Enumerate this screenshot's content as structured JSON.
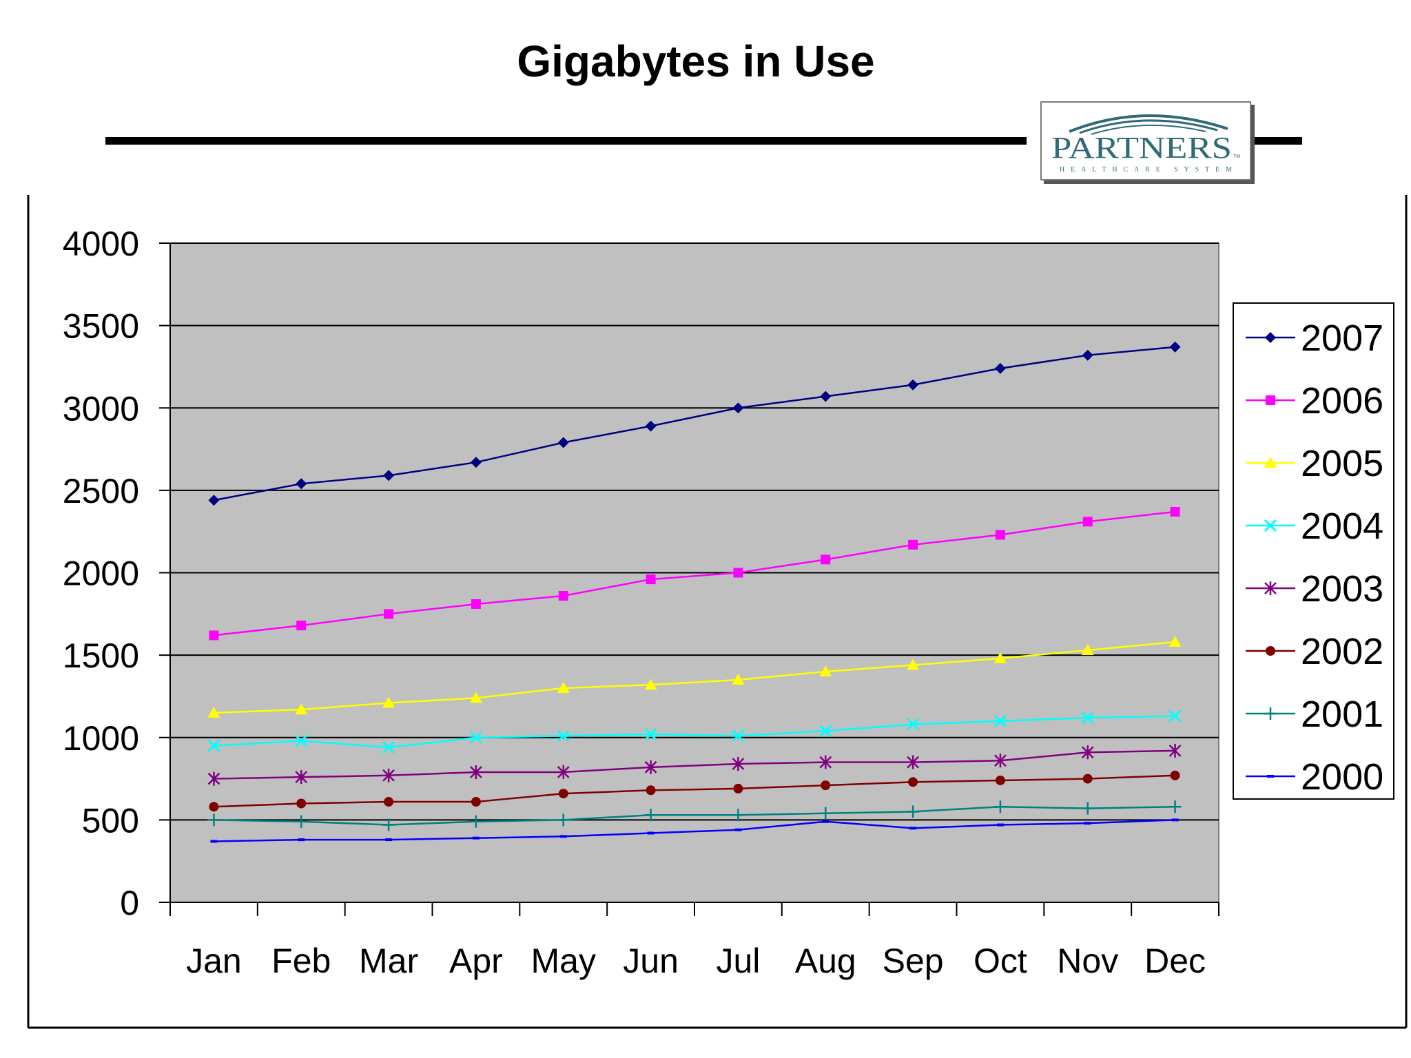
{
  "title": "Gigabytes in Use",
  "logo": {
    "name": "PARTNERS",
    "trademark": "TM",
    "tagline": "HEALTHCARE SYSTEM"
  },
  "chart_data": {
    "type": "line",
    "title": "",
    "xlabel": "",
    "ylabel": "",
    "categories": [
      "Jan",
      "Feb",
      "Mar",
      "Apr",
      "May",
      "Jun",
      "Jul",
      "Aug",
      "Sep",
      "Oct",
      "Nov",
      "Dec"
    ],
    "ylim": [
      0,
      4000
    ],
    "yticks": [
      "4000",
      "3500",
      "3000",
      "2500",
      "2000",
      "1500",
      "1000",
      "500",
      "0"
    ],
    "grid": true,
    "legend_position": "right",
    "series": [
      {
        "name": "2007",
        "color": "#000080",
        "marker": "diamond",
        "values": [
          2440,
          2540,
          2590,
          2670,
          2790,
          2890,
          3000,
          3070,
          3140,
          3240,
          3320,
          3370
        ]
      },
      {
        "name": "2006",
        "color": "#ff00ff",
        "marker": "square",
        "values": [
          1620,
          1680,
          1750,
          1810,
          1860,
          1960,
          2000,
          2080,
          2170,
          2230,
          2310,
          2370
        ]
      },
      {
        "name": "2005",
        "color": "#ffff00",
        "marker": "triangle",
        "values": [
          1150,
          1170,
          1210,
          1240,
          1300,
          1320,
          1350,
          1400,
          1440,
          1480,
          1530,
          1580
        ]
      },
      {
        "name": "2004",
        "color": "#00ffff",
        "marker": "x",
        "values": [
          950,
          980,
          940,
          1000,
          1010,
          1020,
          1010,
          1040,
          1080,
          1100,
          1120,
          1130
        ]
      },
      {
        "name": "2003",
        "color": "#800080",
        "marker": "star",
        "values": [
          750,
          760,
          770,
          790,
          790,
          820,
          840,
          850,
          850,
          860,
          910,
          920
        ]
      },
      {
        "name": "2002",
        "color": "#800000",
        "marker": "circle",
        "values": [
          580,
          600,
          610,
          610,
          660,
          680,
          690,
          710,
          730,
          740,
          750,
          770
        ]
      },
      {
        "name": "2001",
        "color": "#008080",
        "marker": "plus",
        "values": [
          500,
          490,
          470,
          490,
          500,
          530,
          530,
          540,
          550,
          580,
          570,
          580
        ]
      },
      {
        "name": "2000",
        "color": "#0000ff",
        "marker": "dash",
        "values": [
          370,
          380,
          380,
          390,
          400,
          420,
          440,
          490,
          450,
          470,
          480,
          500
        ]
      }
    ]
  }
}
